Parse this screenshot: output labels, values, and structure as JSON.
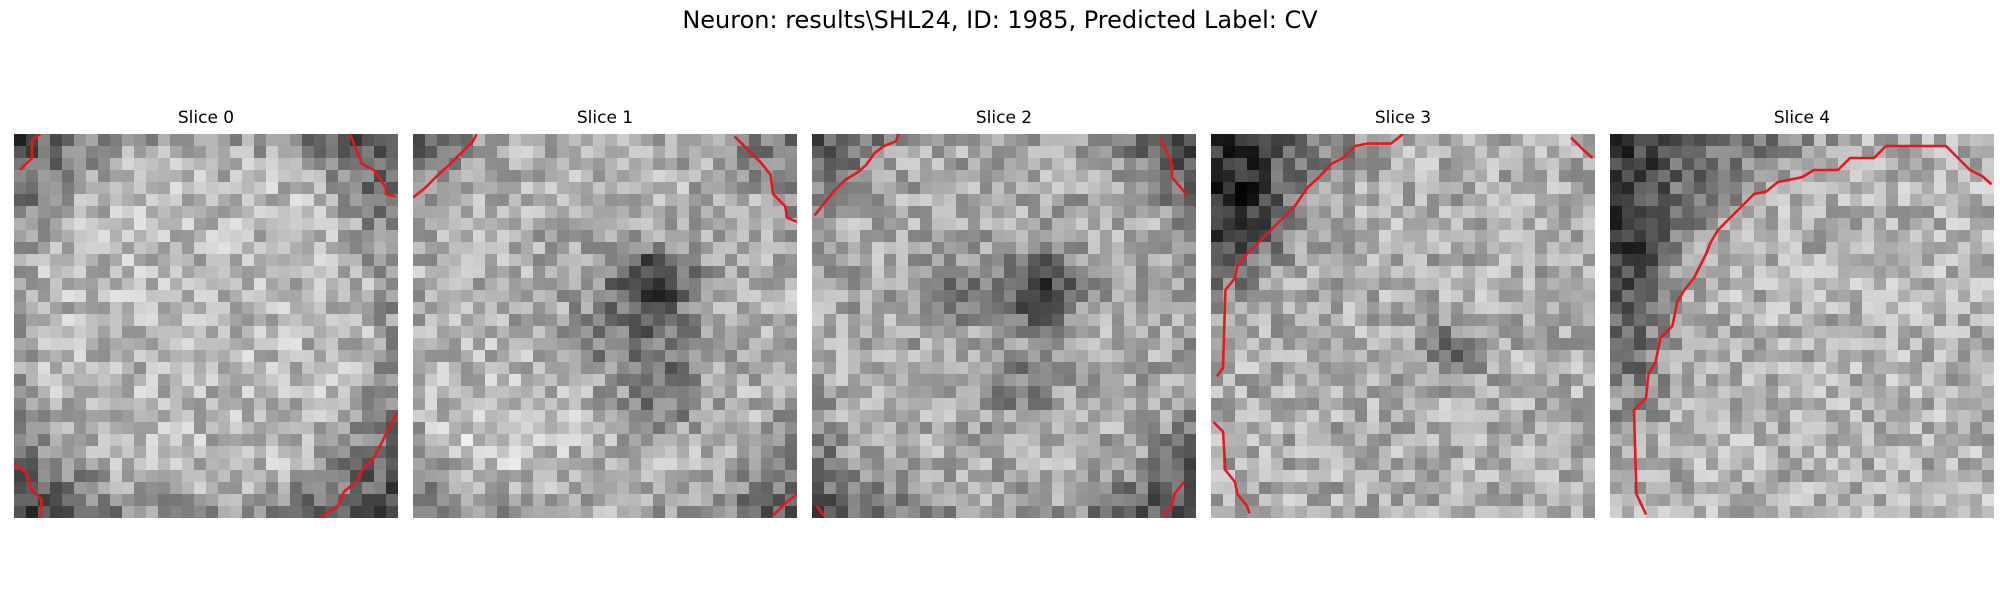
{
  "figure": {
    "title": "Neuron: results\\SHL24, ID: 1985, Predicted Label: CV"
  },
  "panels": [
    {
      "title": "Slice 0",
      "contour_color": "#e31a1c"
    },
    {
      "title": "Slice 1",
      "contour_color": "#e31a1c"
    },
    {
      "title": "Slice 2",
      "contour_color": "#e31a1c"
    },
    {
      "title": "Slice 3",
      "contour_color": "#e31a1c"
    },
    {
      "title": "Slice 4",
      "contour_color": "#e31a1c"
    }
  ],
  "style": {
    "colormap": "gray",
    "contour_color": "#e31a1c"
  }
}
